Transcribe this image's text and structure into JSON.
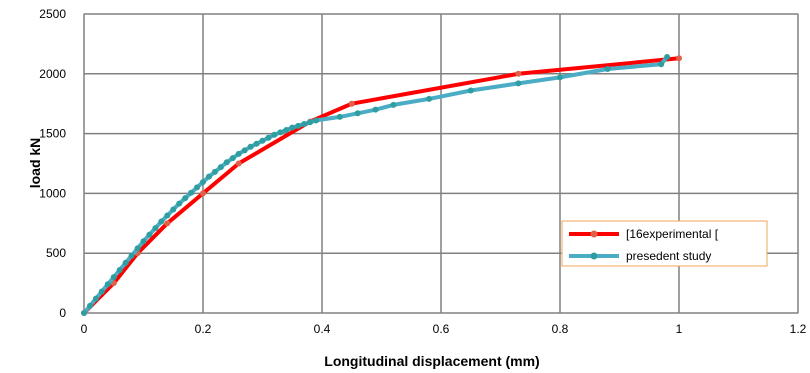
{
  "chart_data": {
    "type": "line",
    "xlabel": "Longitudinal displacement (mm)",
    "ylabel": "load kN",
    "xlim": [
      0,
      1.2
    ],
    "ylim": [
      0,
      2500
    ],
    "x_ticks": [
      "0",
      "0.2",
      "0.4",
      "0.6",
      "0.8",
      "1",
      "1.2"
    ],
    "y_ticks": [
      "0",
      "500",
      "1000",
      "1500",
      "2000",
      "2500"
    ],
    "grid": true,
    "legend_position": "lower-right",
    "series": [
      {
        "name": "[16experimental [",
        "line_color": "#ff0000",
        "marker_color": "#e0604a",
        "x": [
          0,
          0.05,
          0.09,
          0.14,
          0.2,
          0.26,
          0.38,
          0.45,
          0.73,
          1.0
        ],
        "y": [
          0,
          250,
          500,
          750,
          1000,
          1250,
          1600,
          1750,
          2000,
          2130
        ]
      },
      {
        "name": "presedent study",
        "line_color": "#4bacc6",
        "marker_color": "#2e9ea0",
        "x": [
          0,
          0.01,
          0.02,
          0.03,
          0.04,
          0.05,
          0.06,
          0.07,
          0.08,
          0.09,
          0.1,
          0.11,
          0.12,
          0.13,
          0.14,
          0.15,
          0.16,
          0.17,
          0.18,
          0.19,
          0.2,
          0.21,
          0.22,
          0.23,
          0.24,
          0.25,
          0.26,
          0.27,
          0.28,
          0.29,
          0.3,
          0.31,
          0.32,
          0.33,
          0.34,
          0.35,
          0.36,
          0.37,
          0.38,
          0.39,
          0.43,
          0.46,
          0.49,
          0.52,
          0.58,
          0.65,
          0.73,
          0.8,
          0.88,
          0.97,
          0.98
        ],
        "y": [
          0,
          60,
          120,
          180,
          240,
          300,
          360,
          420,
          480,
          540,
          600,
          655,
          710,
          765,
          815,
          865,
          915,
          960,
          1005,
          1050,
          1095,
          1140,
          1180,
          1220,
          1260,
          1295,
          1330,
          1360,
          1390,
          1415,
          1440,
          1465,
          1490,
          1510,
          1530,
          1550,
          1565,
          1580,
          1595,
          1610,
          1640,
          1670,
          1700,
          1740,
          1790,
          1860,
          1920,
          1970,
          2040,
          2080,
          2140
        ]
      }
    ]
  }
}
